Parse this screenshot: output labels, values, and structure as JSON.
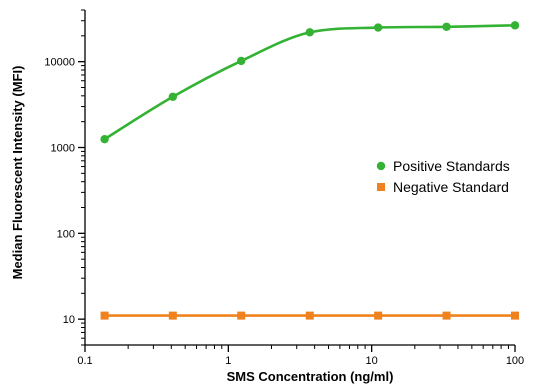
{
  "chart_data": {
    "type": "line",
    "title": "",
    "xlabel": "SMS Concentration (ng/ml)",
    "ylabel": "Median Fluorescent Intensity (MFI)",
    "x_scale": "log",
    "y_scale": "log",
    "xlim": [
      0.1,
      100
    ],
    "ylim": [
      5,
      40000
    ],
    "x_ticks": [
      {
        "value": 0.1,
        "label": "0.1"
      },
      {
        "value": 1,
        "label": "1"
      },
      {
        "value": 10,
        "label": "10"
      },
      {
        "value": 100,
        "label": "100"
      }
    ],
    "y_ticks": [
      {
        "value": 10,
        "label": "10"
      },
      {
        "value": 100,
        "label": "100"
      },
      {
        "value": 1000,
        "label": "1000"
      },
      {
        "value": 10000,
        "label": "10000"
      }
    ],
    "grid": false,
    "legend_position": "right",
    "series": [
      {
        "name": "Positive Standards",
        "color": "#33b233",
        "marker": "circle",
        "curve": "fitted",
        "x": [
          0.137,
          0.41,
          1.23,
          3.7,
          11.1,
          33.3,
          100
        ],
        "y": [
          1250,
          3900,
          10200,
          22000,
          25000,
          25500,
          26500
        ]
      },
      {
        "name": "Negative Standard",
        "color": "#f0821e",
        "marker": "square",
        "curve": "line",
        "x": [
          0.137,
          0.41,
          1.23,
          3.7,
          11.1,
          33.3,
          100
        ],
        "y": [
          11,
          11,
          11,
          11,
          11,
          11,
          11
        ]
      }
    ]
  }
}
